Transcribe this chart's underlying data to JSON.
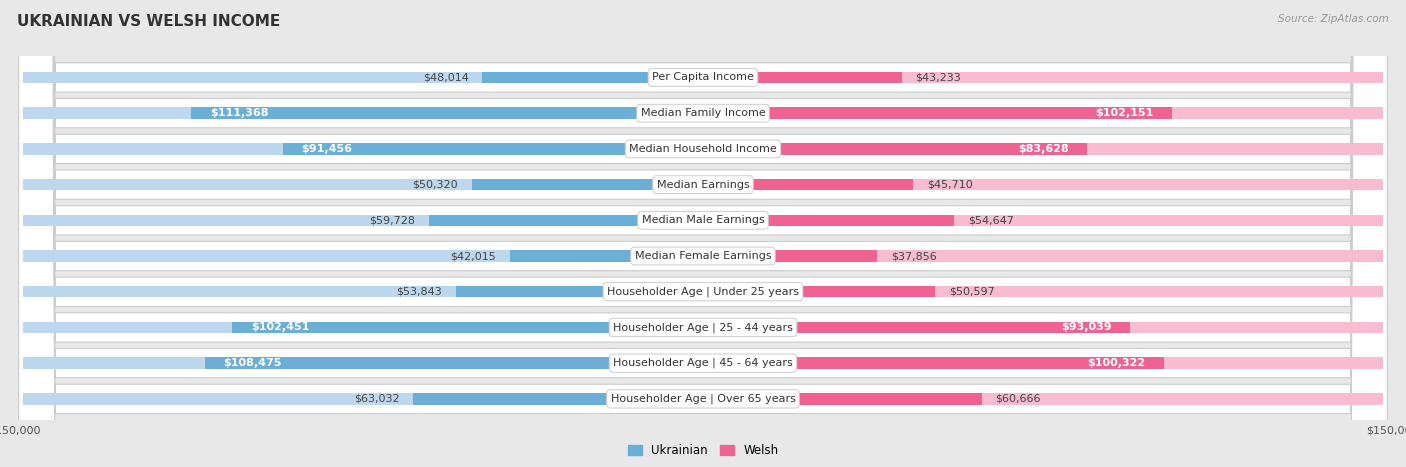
{
  "title": "UKRAINIAN VS WELSH INCOME",
  "source": "Source: ZipAtlas.com",
  "categories": [
    "Per Capita Income",
    "Median Family Income",
    "Median Household Income",
    "Median Earnings",
    "Median Male Earnings",
    "Median Female Earnings",
    "Householder Age | Under 25 years",
    "Householder Age | 25 - 44 years",
    "Householder Age | 45 - 64 years",
    "Householder Age | Over 65 years"
  ],
  "ukrainian_values": [
    48014,
    111368,
    91456,
    50320,
    59728,
    42015,
    53843,
    102451,
    108475,
    63032
  ],
  "welsh_values": [
    43233,
    102151,
    83628,
    45710,
    54647,
    37856,
    50597,
    93039,
    100322,
    60666
  ],
  "ukrainian_labels": [
    "$48,014",
    "$111,368",
    "$91,456",
    "$50,320",
    "$59,728",
    "$42,015",
    "$53,843",
    "$102,451",
    "$108,475",
    "$63,032"
  ],
  "welsh_labels": [
    "$43,233",
    "$102,151",
    "$83,628",
    "$45,710",
    "$54,647",
    "$37,856",
    "$50,597",
    "$93,039",
    "$100,322",
    "$60,666"
  ],
  "max_value": 150000,
  "ukrainian_color_dark": "#6baed6",
  "ukrainian_color_light": "#bdd7ee",
  "welsh_color_dark": "#f06292",
  "welsh_color_light": "#f8bbd0",
  "row_bg": "white",
  "row_border": "#cccccc",
  "page_bg": "#e8e8e8",
  "title_fontsize": 11,
  "label_fontsize": 8,
  "value_fontsize": 8,
  "legend_fontsize": 8.5,
  "axis_label_fontsize": 8,
  "ukr_threshold": 65000,
  "wel_threshold": 65000
}
